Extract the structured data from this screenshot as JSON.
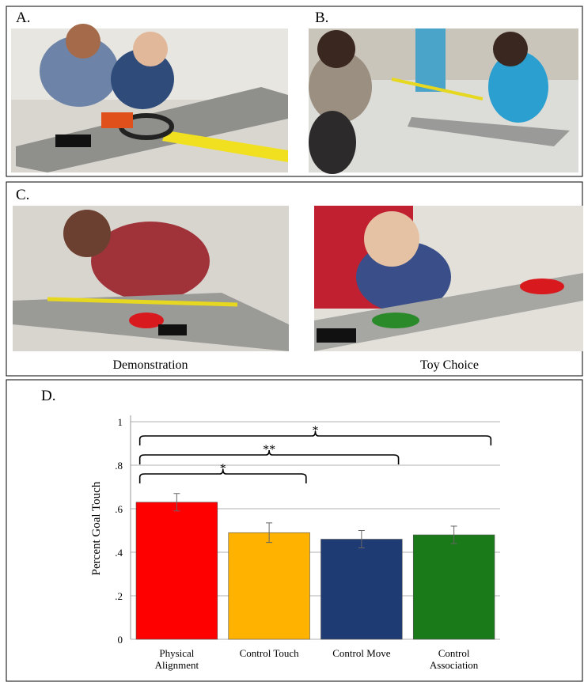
{
  "panels": {
    "a": "A.",
    "b": "B.",
    "c": "C.",
    "d": "D.",
    "c_left_caption": "Demonstration",
    "c_right_caption": "Toy Choice"
  },
  "chart_data": {
    "type": "bar",
    "y_label": "Percent Goal Touch",
    "categories": [
      "Physical Alignment",
      "Control Touch",
      "Control Move",
      "Control Association"
    ],
    "values": [
      0.63,
      0.49,
      0.46,
      0.48
    ],
    "errors": [
      0.04,
      0.045,
      0.04,
      0.04
    ],
    "colors": [
      "#ff0000",
      "#ffb300",
      "#1f3b73",
      "#1a7a1a"
    ],
    "ylim": [
      0,
      1
    ],
    "yticks": [
      0,
      {
        "value": 0.2,
        "label": ".2"
      },
      {
        "value": 0.4,
        "label": ".4"
      },
      {
        "value": 0.6,
        "label": ".6"
      },
      {
        "value": 0.8,
        "label": ".8"
      },
      1
    ],
    "grid": true,
    "comparisons": [
      {
        "label": "*",
        "from": "Physical Alignment",
        "to": "Control Touch"
      },
      {
        "label": "**",
        "from": "Physical Alignment",
        "to": "Control Move"
      },
      {
        "label": "*",
        "from": "Physical Alignment",
        "to": "Control Association"
      }
    ]
  }
}
